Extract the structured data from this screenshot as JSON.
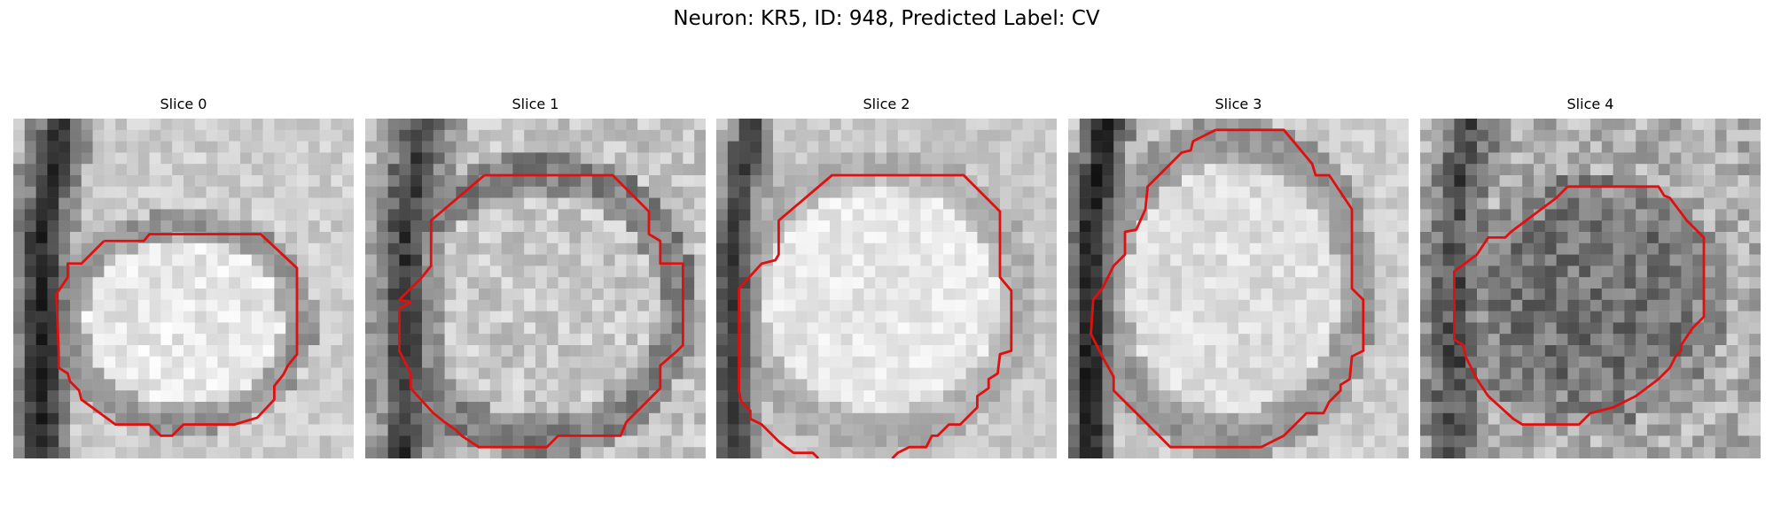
{
  "figure": {
    "title": "Neuron: KR5, ID: 948, Predicted Label: CV"
  },
  "panels": [
    {
      "title": "Slice 0"
    },
    {
      "title": "Slice 1"
    },
    {
      "title": "Slice 2"
    },
    {
      "title": "Slice 3"
    },
    {
      "title": "Slice 4"
    }
  ],
  "colors": {
    "contour": "#e01010",
    "background": "#ffffff"
  }
}
